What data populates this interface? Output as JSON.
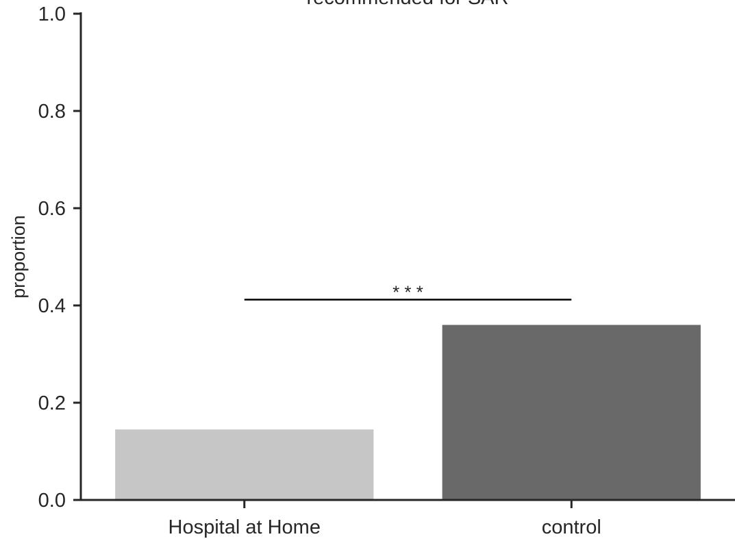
{
  "chart_data": {
    "type": "bar",
    "title": "recommended for SAR",
    "xlabel": "",
    "ylabel": "proportion",
    "categories": [
      "Hospital at Home",
      "control"
    ],
    "values": [
      0.145,
      0.36
    ],
    "colors": [
      "#c6c6c6",
      "#696969"
    ],
    "ylim": [
      0,
      1.0
    ],
    "yticks": [
      "0.0",
      "0.2",
      "0.4",
      "0.6",
      "0.8",
      "1.0"
    ],
    "grid": false,
    "legend": "none",
    "annotation": {
      "text": "* * *",
      "between": [
        "Hospital at Home",
        "control"
      ],
      "y": 0.412
    }
  }
}
